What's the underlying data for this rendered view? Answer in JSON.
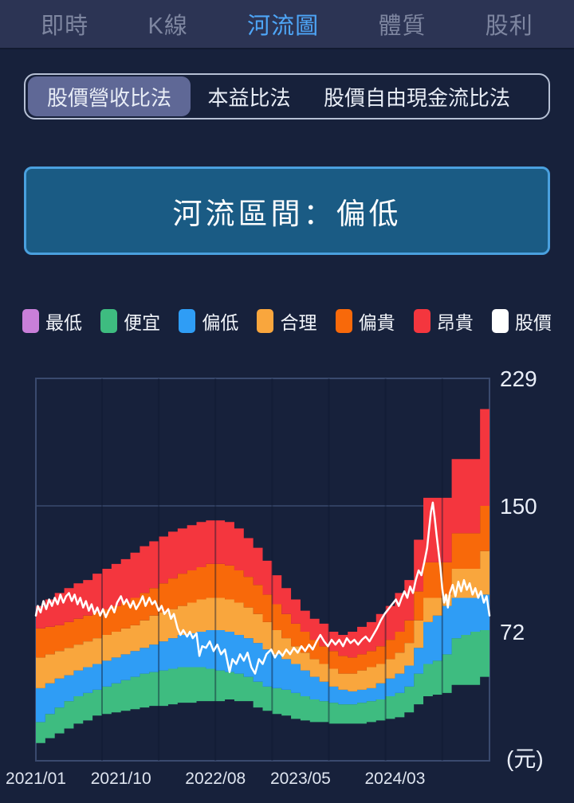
{
  "topnav": {
    "active_color": "#4EA6F8",
    "items": [
      {
        "label": "即時",
        "active": false
      },
      {
        "label": "K線",
        "active": false
      },
      {
        "label": "河流圖",
        "active": true
      },
      {
        "label": "體質",
        "active": false
      },
      {
        "label": "股利",
        "active": false
      }
    ]
  },
  "methods": {
    "items": [
      {
        "label": "股價營收比法",
        "active": true
      },
      {
        "label": "本益比法",
        "active": false
      },
      {
        "label": "股價自由現金流比法",
        "active": false
      }
    ]
  },
  "river_box": {
    "label": "河流區間：偏低"
  },
  "legend": {
    "items": [
      {
        "label": "最低",
        "color": "#C97FD9"
      },
      {
        "label": "便宜",
        "color": "#3EBC80"
      },
      {
        "label": "偏低",
        "color": "#2F9DF5"
      },
      {
        "label": "合理",
        "color": "#F9A63D"
      },
      {
        "label": "偏貴",
        "color": "#F8690A"
      },
      {
        "label": "昂貴",
        "color": "#F4363E"
      },
      {
        "label": "股價",
        "color": "#FFFFFF"
      }
    ]
  },
  "chart_data": {
    "type": "area",
    "months": 48,
    "start_month": "2021/01",
    "end_month": "2024/12",
    "ylim": [
      -8,
      229
    ],
    "unit_label": "(元)",
    "y_ticks": [
      {
        "value": 229,
        "label": "229"
      },
      {
        "value": 150,
        "label": "150"
      },
      {
        "value": 72,
        "label": "72"
      }
    ],
    "x_ticks": [
      {
        "month": 0,
        "label": "2021/01"
      },
      {
        "month": 9,
        "label": "2021/10"
      },
      {
        "month": 19,
        "label": "2022/08"
      },
      {
        "month": 28,
        "label": "2023/05"
      },
      {
        "month": 38,
        "label": "2024/03"
      }
    ],
    "grid": {
      "h_lines": [
        150
      ],
      "v_line_months": [
        7,
        13,
        19,
        25,
        31,
        37,
        43
      ]
    },
    "boundaries": {
      "b0": [
        3,
        6,
        9,
        12,
        15,
        17,
        20,
        21,
        22,
        23,
        24,
        25,
        26,
        26,
        27,
        28,
        28,
        29,
        29,
        29,
        30,
        29,
        29,
        25,
        23,
        21,
        20,
        18,
        17,
        16,
        16,
        15,
        15,
        15,
        15,
        16,
        17,
        18,
        19,
        22,
        27,
        32,
        33,
        34,
        39,
        39,
        39,
        44
      ],
      "b1": [
        16,
        21,
        25,
        29,
        32,
        34,
        36,
        38,
        40,
        42,
        44,
        46,
        47,
        48,
        49,
        50,
        50,
        50,
        49,
        48,
        47,
        46,
        44,
        41,
        38,
        37,
        36,
        34,
        32,
        30,
        29,
        28,
        27,
        27,
        28,
        29,
        30,
        32,
        34,
        38,
        46,
        52,
        54,
        58,
        68,
        70,
        72,
        73
      ],
      "b2": [
        37,
        40,
        43,
        45,
        48,
        50,
        52,
        54,
        56,
        58,
        60,
        62,
        64,
        66,
        68,
        70,
        71,
        72,
        73,
        73,
        72,
        70,
        68,
        65,
        61,
        58,
        55,
        52,
        48,
        44,
        41,
        38,
        36,
        35,
        36,
        37,
        40,
        43,
        46,
        51,
        62,
        78,
        82,
        88,
        93,
        93,
        93,
        95
      ],
      "b3": [
        56,
        58,
        60,
        62,
        64,
        66,
        68,
        70,
        72,
        74,
        76,
        79,
        82,
        84,
        86,
        88,
        90,
        92,
        93,
        93,
        92,
        90,
        87,
        83,
        78,
        73,
        68,
        63,
        59,
        55,
        52,
        49,
        46,
        46,
        48,
        50,
        52,
        55,
        59,
        65,
        79,
        93,
        93,
        95,
        111,
        111,
        111,
        122
      ],
      "b4": [
        74,
        75,
        76,
        78,
        80,
        82,
        84,
        86,
        88,
        90,
        93,
        96,
        99,
        102,
        105,
        108,
        110,
        112,
        114,
        114,
        113,
        110,
        106,
        101,
        95,
        89,
        83,
        77,
        72,
        67,
        63,
        60,
        57,
        56,
        58,
        60,
        63,
        67,
        72,
        79,
        97,
        115,
        115,
        115,
        133,
        133,
        133,
        150
      ],
      "b5": [
        88,
        92,
        96,
        99,
        102,
        104,
        108,
        111,
        114,
        117,
        121,
        125,
        128,
        131,
        134,
        136,
        138,
        140,
        141,
        141,
        140,
        136,
        130,
        124,
        116,
        107,
        99,
        92,
        85,
        80,
        77,
        72,
        70,
        72,
        75,
        78,
        83,
        88,
        96,
        104,
        129,
        155,
        155,
        155,
        179,
        179,
        179,
        210
      ]
    },
    "bands": [
      {
        "name": "便宜",
        "color": "#3EBC80",
        "from": "b0",
        "to": "b1"
      },
      {
        "name": "偏低",
        "color": "#2F9DF5",
        "from": "b1",
        "to": "b2"
      },
      {
        "name": "合理",
        "color": "#F9A63D",
        "from": "b2",
        "to": "b3"
      },
      {
        "name": "偏貴",
        "color": "#F8690A",
        "from": "b3",
        "to": "b4"
      },
      {
        "name": "昂貴",
        "color": "#F4363E",
        "from": "b4",
        "to": "b5"
      }
    ],
    "price_line": {
      "name": "股價",
      "color": "#FFFFFF",
      "points": [
        [
          0,
          82
        ],
        [
          0.2,
          88
        ],
        [
          0.5,
          84
        ],
        [
          0.8,
          91
        ],
        [
          1.1,
          86
        ],
        [
          1.4,
          92
        ],
        [
          1.7,
          88
        ],
        [
          2,
          93
        ],
        [
          2.3,
          89
        ],
        [
          2.6,
          95
        ],
        [
          2.9,
          90
        ],
        [
          3.2,
          94
        ],
        [
          3.5,
          96
        ],
        [
          3.8,
          91
        ],
        [
          4.1,
          95
        ],
        [
          4.4,
          89
        ],
        [
          4.7,
          93
        ],
        [
          5,
          87
        ],
        [
          5.3,
          91
        ],
        [
          5.6,
          85
        ],
        [
          5.9,
          89
        ],
        [
          6.2,
          83
        ],
        [
          6.5,
          87
        ],
        [
          6.8,
          82
        ],
        [
          7.1,
          86
        ],
        [
          7.4,
          81
        ],
        [
          7.7,
          85
        ],
        [
          8,
          88
        ],
        [
          8.3,
          84
        ],
        [
          8.6,
          90
        ],
        [
          9,
          94
        ],
        [
          9.3,
          89
        ],
        [
          9.6,
          92
        ],
        [
          10,
          87
        ],
        [
          10.3,
          91
        ],
        [
          10.6,
          86
        ],
        [
          11,
          90
        ],
        [
          11.3,
          94
        ],
        [
          11.6,
          88
        ],
        [
          12,
          93
        ],
        [
          12.3,
          89
        ],
        [
          12.6,
          91
        ],
        [
          13,
          85
        ],
        [
          13.3,
          88
        ],
        [
          13.6,
          83
        ],
        [
          14,
          86
        ],
        [
          14.3,
          80
        ],
        [
          14.6,
          83
        ],
        [
          15,
          74
        ],
        [
          15.3,
          70
        ],
        [
          15.6,
          73
        ],
        [
          16,
          69
        ],
        [
          16.3,
          72
        ],
        [
          16.6,
          68
        ],
        [
          17,
          71
        ],
        [
          17.3,
          57
        ],
        [
          17.6,
          63
        ],
        [
          18,
          62
        ],
        [
          18.4,
          66
        ],
        [
          18.8,
          60
        ],
        [
          19.2,
          64
        ],
        [
          19.6,
          58
        ],
        [
          20,
          61
        ],
        [
          20.5,
          47
        ],
        [
          20.8,
          55
        ],
        [
          21.2,
          52
        ],
        [
          21.6,
          58
        ],
        [
          22,
          54
        ],
        [
          22.4,
          59
        ],
        [
          22.8,
          50
        ],
        [
          23.2,
          46
        ],
        [
          23.6,
          55
        ],
        [
          24,
          52
        ],
        [
          24.4,
          58
        ],
        [
          24.9,
          61
        ],
        [
          25.3,
          56
        ],
        [
          25.7,
          60
        ],
        [
          26.1,
          57
        ],
        [
          26.5,
          61
        ],
        [
          26.9,
          58
        ],
        [
          27.3,
          62
        ],
        [
          27.7,
          59
        ],
        [
          28.1,
          63
        ],
        [
          28.5,
          60
        ],
        [
          28.9,
          64
        ],
        [
          29.3,
          61
        ],
        [
          29.7,
          66
        ],
        [
          30.1,
          70
        ],
        [
          30.5,
          66
        ],
        [
          30.9,
          63
        ],
        [
          31.3,
          67
        ],
        [
          31.7,
          64
        ],
        [
          32.1,
          67
        ],
        [
          32.5,
          63
        ],
        [
          32.9,
          68
        ],
        [
          33.3,
          65
        ],
        [
          33.7,
          67
        ],
        [
          34.1,
          64
        ],
        [
          34.5,
          67
        ],
        [
          34.9,
          69
        ],
        [
          35.3,
          66
        ],
        [
          35.7,
          70
        ],
        [
          36.1,
          74
        ],
        [
          36.5,
          79
        ],
        [
          36.9,
          83
        ],
        [
          37.3,
          86
        ],
        [
          37.7,
          89
        ],
        [
          38.1,
          92
        ],
        [
          38.4,
          88
        ],
        [
          38.7,
          93
        ],
        [
          39,
          97
        ],
        [
          39.3,
          93
        ],
        [
          39.6,
          100
        ],
        [
          39.9,
          96
        ],
        [
          40.2,
          104
        ],
        [
          40.5,
          110
        ],
        [
          40.8,
          107
        ],
        [
          41.1,
          115
        ],
        [
          41.4,
          124
        ],
        [
          41.6,
          135
        ],
        [
          41.8,
          146
        ],
        [
          42,
          152
        ],
        [
          42.2,
          143
        ],
        [
          42.4,
          132
        ],
        [
          42.6,
          122
        ],
        [
          42.8,
          112
        ],
        [
          43,
          99
        ],
        [
          43.2,
          90
        ],
        [
          43.4,
          95
        ],
        [
          43.6,
          87
        ],
        [
          43.8,
          96
        ],
        [
          44.1,
          101
        ],
        [
          44.4,
          94
        ],
        [
          44.7,
          103
        ],
        [
          45,
          97
        ],
        [
          45.3,
          104
        ],
        [
          45.6,
          98
        ],
        [
          45.9,
          102
        ],
        [
          46.2,
          95
        ],
        [
          46.5,
          99
        ],
        [
          46.8,
          93
        ],
        [
          47.1,
          97
        ],
        [
          47.4,
          90
        ],
        [
          47.7,
          94
        ],
        [
          48,
          82
        ]
      ]
    },
    "colors": {
      "axis_text": "#E9EEF8",
      "axis_line": "#3A4A6E",
      "grid_line": "#3A4A6E"
    }
  }
}
